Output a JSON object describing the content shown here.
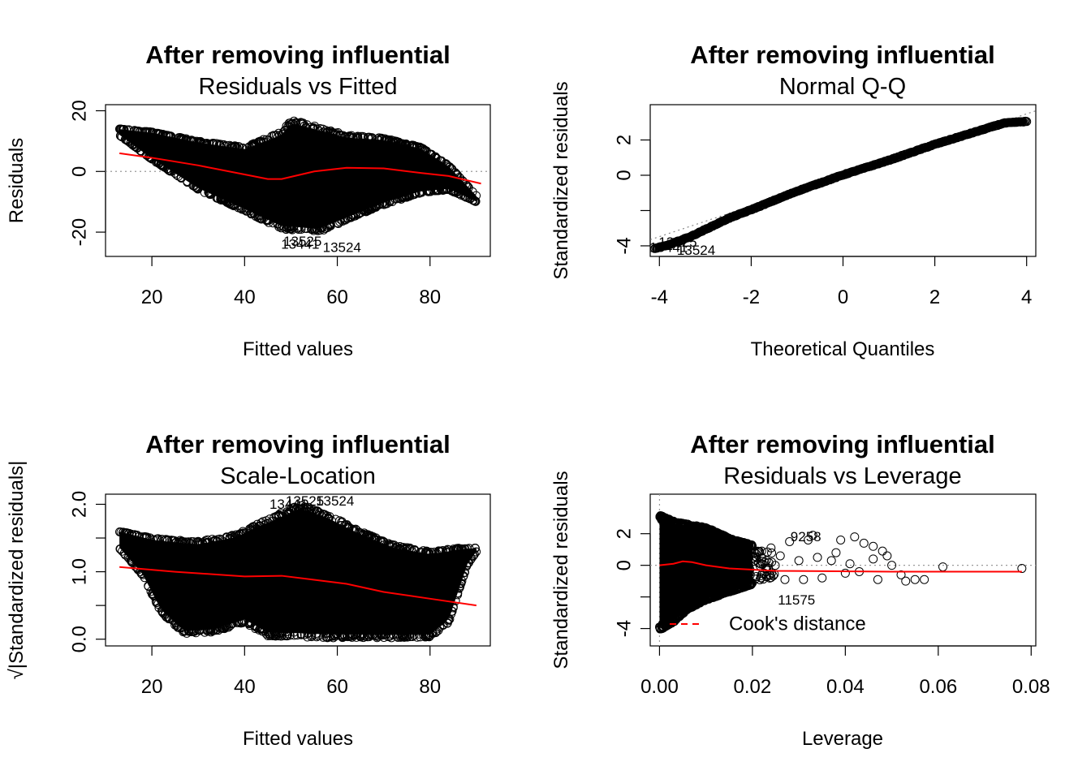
{
  "chart_data": [
    {
      "type": "scatter",
      "title": "After removing influential",
      "subtitle": "Residuals vs Fitted",
      "xlabel": "Fitted values",
      "ylabel": "Residuals",
      "xlim": [
        10,
        93
      ],
      "ylim": [
        -28,
        22
      ],
      "xticks": [
        20,
        40,
        60,
        80
      ],
      "xtick_labels": [
        "20",
        "40",
        "60",
        "80"
      ],
      "yticks": [
        -20,
        0,
        20
      ],
      "ytick_labels": [
        "-20",
        "0",
        "20"
      ],
      "lower_bound": [
        [
          13,
          12
        ],
        [
          20,
          4
        ],
        [
          30,
          -6
        ],
        [
          40,
          -13
        ],
        [
          48,
          -19
        ],
        [
          56,
          -20
        ],
        [
          62,
          -16
        ],
        [
          70,
          -11
        ],
        [
          78,
          -7
        ],
        [
          84,
          -6
        ],
        [
          90,
          -10
        ]
      ],
      "upper_bound": [
        [
          13,
          14
        ],
        [
          20,
          13
        ],
        [
          30,
          10
        ],
        [
          40,
          8
        ],
        [
          48,
          13
        ],
        [
          50,
          17
        ],
        [
          55,
          15
        ],
        [
          62,
          12
        ],
        [
          70,
          11
        ],
        [
          78,
          8
        ],
        [
          84,
          2
        ],
        [
          90,
          -8
        ]
      ],
      "smooth": [
        [
          13,
          6
        ],
        [
          20,
          4.5
        ],
        [
          30,
          2
        ],
        [
          40,
          -1
        ],
        [
          45,
          -2.5
        ],
        [
          48,
          -2.5
        ],
        [
          55,
          0
        ],
        [
          62,
          1.2
        ],
        [
          70,
          1
        ],
        [
          78,
          -0.5
        ],
        [
          84,
          -1.5
        ],
        [
          91,
          -4
        ]
      ],
      "hline": 0,
      "annotations": [
        {
          "text": "13525",
          "x": 52.5,
          "y": -23
        },
        {
          "text": "13441",
          "x": 52,
          "y": -24
        },
        {
          "text": "13524",
          "x": 61,
          "y": -25
        }
      ]
    },
    {
      "type": "scatter",
      "title": "After removing influential",
      "subtitle": "Normal Q-Q",
      "xlabel": "Theoretical Quantiles",
      "ylabel": "Standardized residuals",
      "xlim": [
        -4.2,
        4.2
      ],
      "ylim": [
        -4.6,
        4.0
      ],
      "xticks": [
        -4,
        -2,
        0,
        2,
        4
      ],
      "xtick_labels": [
        "-4",
        "-2",
        "0",
        "2",
        "4"
      ],
      "yticks": [
        -4,
        -2,
        0,
        2
      ],
      "ytick_labels": [
        "-4",
        "",
        "0",
        "2"
      ],
      "qq_curve": [
        [
          -4.1,
          -4.15
        ],
        [
          -3.8,
          -3.95
        ],
        [
          -3.3,
          -3.45
        ],
        [
          -2.5,
          -2.45
        ],
        [
          -2,
          -1.95
        ],
        [
          -1,
          -0.9
        ],
        [
          0,
          0.02
        ],
        [
          1,
          0.85
        ],
        [
          2,
          1.75
        ],
        [
          3,
          2.55
        ],
        [
          3.5,
          2.95
        ],
        [
          4.0,
          3.05
        ]
      ],
      "reference_line": [
        [
          -4.6,
          -4.0
        ],
        [
          4.6,
          4.0
        ]
      ],
      "annotations": [
        {
          "text": "13525",
          "x": -3.6,
          "y": -3.8
        },
        {
          "text": "13441",
          "x": -3.8,
          "y": -4.1
        },
        {
          "text": "13524",
          "x": -3.2,
          "y": -4.25
        }
      ]
    },
    {
      "type": "scatter",
      "title": "After removing influential",
      "subtitle": "Scale-Location",
      "xlabel": "Fitted values",
      "ylabel": "√|Standardized residuals|",
      "xlim": [
        10,
        93
      ],
      "ylim": [
        -0.1,
        2.15
      ],
      "xticks": [
        20,
        40,
        60,
        80
      ],
      "xtick_labels": [
        "20",
        "40",
        "60",
        "80"
      ],
      "yticks": [
        0.0,
        0.5,
        1.0,
        1.5,
        2.0
      ],
      "ytick_labels": [
        "0.0",
        "",
        "1.0",
        "",
        "2.0"
      ],
      "lower_bound": [
        [
          13,
          1.35
        ],
        [
          18,
          0.95
        ],
        [
          22,
          0.4
        ],
        [
          27,
          0.08
        ],
        [
          33,
          0.1
        ],
        [
          40,
          0.25
        ],
        [
          45,
          0.05
        ],
        [
          55,
          0.02
        ],
        [
          70,
          0.02
        ],
        [
          80,
          0.03
        ],
        [
          84,
          0.25
        ],
        [
          88,
          1.1
        ],
        [
          90,
          1.3
        ]
      ],
      "upper_bound": [
        [
          13,
          1.6
        ],
        [
          20,
          1.5
        ],
        [
          30,
          1.45
        ],
        [
          38,
          1.55
        ],
        [
          45,
          1.78
        ],
        [
          52,
          2.0
        ],
        [
          58,
          1.85
        ],
        [
          65,
          1.6
        ],
        [
          72,
          1.4
        ],
        [
          80,
          1.3
        ],
        [
          86,
          1.35
        ],
        [
          90,
          1.35
        ]
      ],
      "smooth": [
        [
          13,
          1.07
        ],
        [
          25,
          1.0
        ],
        [
          40,
          0.93
        ],
        [
          48,
          0.94
        ],
        [
          55,
          0.88
        ],
        [
          62,
          0.82
        ],
        [
          70,
          0.7
        ],
        [
          80,
          0.6
        ],
        [
          90,
          0.5
        ]
      ],
      "annotations": [
        {
          "text": "13441",
          "x": 49.5,
          "y": 2.0
        },
        {
          "text": "13525",
          "x": 53,
          "y": 2.05
        },
        {
          "text": "13524",
          "x": 59.5,
          "y": 2.05
        }
      ]
    },
    {
      "type": "scatter",
      "title": "After removing influential",
      "subtitle": "Residuals vs Leverage",
      "xlabel": "Leverage",
      "ylabel": "Standardized residuals",
      "xlim": [
        -0.002,
        0.081
      ],
      "ylim": [
        -5.1,
        4.5
      ],
      "xticks": [
        0.0,
        0.02,
        0.04,
        0.06,
        0.08
      ],
      "xtick_labels": [
        "0.00",
        "0.02",
        "0.04",
        "0.06",
        "0.08"
      ],
      "yticks": [
        -4,
        -2,
        0,
        2
      ],
      "ytick_labels": [
        "-4",
        "",
        "0",
        "2"
      ],
      "lower_bound": [
        [
          0.0,
          -4.1
        ],
        [
          0.003,
          -3.6
        ],
        [
          0.006,
          -2.8
        ],
        [
          0.01,
          -2.2
        ],
        [
          0.016,
          -1.6
        ],
        [
          0.02,
          -1.2
        ]
      ],
      "upper_bound": [
        [
          0.0,
          3.2
        ],
        [
          0.003,
          2.8
        ],
        [
          0.006,
          2.6
        ],
        [
          0.01,
          2.4
        ],
        [
          0.016,
          1.6
        ],
        [
          0.02,
          1.3
        ]
      ],
      "smooth": [
        [
          0.0,
          0.0
        ],
        [
          0.003,
          0.1
        ],
        [
          0.005,
          0.25
        ],
        [
          0.007,
          0.2
        ],
        [
          0.01,
          0.0
        ],
        [
          0.015,
          -0.2
        ],
        [
          0.025,
          -0.35
        ],
        [
          0.05,
          -0.4
        ],
        [
          0.078,
          -0.4
        ]
      ],
      "hline": 0,
      "vline": 0,
      "points": [
        [
          0.022,
          0.9
        ],
        [
          0.024,
          1.1
        ],
        [
          0.026,
          0.6
        ],
        [
          0.027,
          -0.9
        ],
        [
          0.028,
          1.5
        ],
        [
          0.03,
          0.3
        ],
        [
          0.031,
          -0.9
        ],
        [
          0.032,
          1.6
        ],
        [
          0.033,
          1.9
        ],
        [
          0.034,
          0.5
        ],
        [
          0.035,
          -0.8
        ],
        [
          0.037,
          0.3
        ],
        [
          0.038,
          0.8
        ],
        [
          0.04,
          -0.5
        ],
        [
          0.041,
          0.1
        ],
        [
          0.043,
          -0.4
        ],
        [
          0.044,
          1.4
        ],
        [
          0.046,
          0.4
        ],
        [
          0.047,
          -0.9
        ],
        [
          0.049,
          0.6
        ],
        [
          0.05,
          0.0
        ],
        [
          0.052,
          -0.6
        ],
        [
          0.053,
          -1.0
        ],
        [
          0.055,
          -0.9
        ],
        [
          0.057,
          -0.9
        ],
        [
          0.061,
          -0.1
        ],
        [
          0.078,
          -0.2
        ],
        [
          0.046,
          1.2
        ],
        [
          0.048,
          0.9
        ],
        [
          0.039,
          1.6
        ],
        [
          0.042,
          1.8
        ]
      ],
      "legend": "Cook's distance",
      "legend_position": "bottom-left",
      "annotations": [
        {
          "text": "9258",
          "x": 0.0315,
          "y": 1.8
        },
        {
          "text": "11575",
          "x": 0.0295,
          "y": -2.2
        }
      ]
    }
  ]
}
